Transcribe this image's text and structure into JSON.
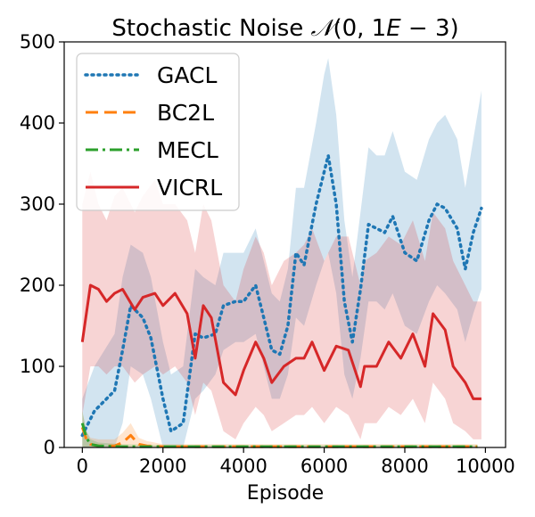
{
  "chart_data": {
    "type": "line",
    "title": "Stochastic Noise N(0, 1E-3)",
    "title_parts": {
      "prefix": "Stochastic Noise ",
      "symbol": "𝒩",
      "args": "(0, 1",
      "e": "E",
      "suffix": " − 3)"
    },
    "xlabel": "Episode",
    "ylabel": "",
    "xlim": [
      -450,
      10500
    ],
    "ylim": [
      0,
      500
    ],
    "xticks": [
      0,
      2000,
      4000,
      6000,
      8000,
      10000
    ],
    "yticks": [
      0,
      100,
      200,
      300,
      400,
      500
    ],
    "grid": false,
    "legend_position": "upper-left",
    "series": [
      {
        "name": "GACL",
        "color": "#1f77b4",
        "style": "dotted",
        "x": [
          0,
          300,
          800,
          1000,
          1200,
          1500,
          1700,
          2000,
          2200,
          2500,
          2800,
          3000,
          3300,
          3500,
          3800,
          4000,
          4300,
          4500,
          4700,
          4900,
          5100,
          5300,
          5500,
          5800,
          6000,
          6100,
          6300,
          6500,
          6700,
          6900,
          7100,
          7300,
          7500,
          7700,
          8000,
          8300,
          8600,
          8800,
          9000,
          9300,
          9500,
          9700,
          9900
        ],
        "y": [
          15,
          45,
          70,
          120,
          175,
          160,
          135,
          60,
          20,
          30,
          140,
          135,
          140,
          175,
          180,
          180,
          200,
          160,
          120,
          115,
          150,
          240,
          225,
          300,
          340,
          360,
          300,
          180,
          130,
          195,
          275,
          270,
          265,
          285,
          240,
          230,
          280,
          300,
          295,
          270,
          220,
          265,
          295
        ],
        "lower": [
          0,
          0,
          0,
          30,
          100,
          90,
          60,
          0,
          0,
          0,
          60,
          70,
          90,
          120,
          130,
          130,
          140,
          100,
          60,
          60,
          90,
          160,
          150,
          200,
          230,
          240,
          190,
          90,
          60,
          110,
          180,
          180,
          170,
          190,
          150,
          140,
          180,
          200,
          190,
          170,
          130,
          165,
          195
        ],
        "upper": [
          60,
          100,
          140,
          210,
          250,
          240,
          210,
          130,
          90,
          100,
          220,
          210,
          200,
          240,
          240,
          240,
          270,
          230,
          190,
          180,
          220,
          320,
          320,
          400,
          460,
          480,
          410,
          280,
          210,
          290,
          370,
          360,
          360,
          390,
          340,
          330,
          380,
          400,
          410,
          380,
          320,
          380,
          440
        ]
      },
      {
        "name": "BC2L",
        "color": "#ff7f0e",
        "style": "dashed",
        "x": [
          0,
          100,
          200,
          400,
          800,
          1000,
          1200,
          1400,
          1600,
          2000,
          4000,
          6000,
          8000,
          9800
        ],
        "y": [
          25,
          10,
          4,
          2,
          2,
          6,
          15,
          4,
          2,
          1,
          1,
          1,
          1,
          1
        ],
        "lower": [
          0,
          0,
          0,
          0,
          0,
          0,
          0,
          0,
          0,
          0,
          0,
          0,
          0,
          0
        ],
        "upper": [
          45,
          20,
          12,
          10,
          10,
          18,
          30,
          12,
          8,
          4,
          4,
          4,
          4,
          4
        ]
      },
      {
        "name": "MECL",
        "color": "#2ca02c",
        "style": "dashdot",
        "x": [
          0,
          100,
          200,
          400,
          1000,
          2000,
          4000,
          6000,
          8000,
          9800
        ],
        "y": [
          30,
          12,
          4,
          2,
          1,
          1,
          1,
          1,
          1,
          1
        ],
        "lower": [
          0,
          0,
          0,
          0,
          0,
          0,
          0,
          0,
          0,
          0
        ],
        "upper": [
          45,
          20,
          10,
          6,
          4,
          3,
          3,
          3,
          3,
          3
        ]
      },
      {
        "name": "VICRL",
        "color": "#d62728",
        "style": "solid",
        "x": [
          0,
          200,
          400,
          600,
          800,
          1000,
          1300,
          1500,
          1800,
          2000,
          2300,
          2600,
          2800,
          3000,
          3200,
          3500,
          3800,
          4000,
          4300,
          4500,
          4700,
          5000,
          5300,
          5500,
          5700,
          6000,
          6300,
          6600,
          6900,
          7000,
          7300,
          7600,
          7900,
          8200,
          8500,
          8700,
          9000,
          9200,
          9500,
          9700,
          9900
        ],
        "y": [
          130,
          200,
          195,
          180,
          190,
          195,
          170,
          185,
          190,
          175,
          190,
          165,
          110,
          175,
          160,
          80,
          65,
          95,
          130,
          110,
          80,
          100,
          110,
          110,
          130,
          95,
          125,
          120,
          75,
          100,
          100,
          130,
          110,
          140,
          100,
          165,
          145,
          100,
          80,
          60,
          60
        ],
        "lower": [
          40,
          100,
          100,
          90,
          100,
          100,
          80,
          90,
          100,
          90,
          100,
          80,
          40,
          80,
          70,
          20,
          10,
          30,
          50,
          40,
          20,
          30,
          40,
          40,
          50,
          30,
          50,
          40,
          10,
          30,
          30,
          50,
          40,
          60,
          30,
          80,
          60,
          30,
          20,
          10,
          10
        ],
        "upper": [
          300,
          340,
          300,
          280,
          310,
          320,
          290,
          310,
          330,
          300,
          300,
          280,
          240,
          300,
          280,
          200,
          180,
          220,
          260,
          240,
          200,
          230,
          240,
          250,
          270,
          230,
          260,
          260,
          200,
          230,
          240,
          260,
          250,
          280,
          230,
          290,
          270,
          230,
          200,
          180,
          180
        ]
      }
    ]
  }
}
